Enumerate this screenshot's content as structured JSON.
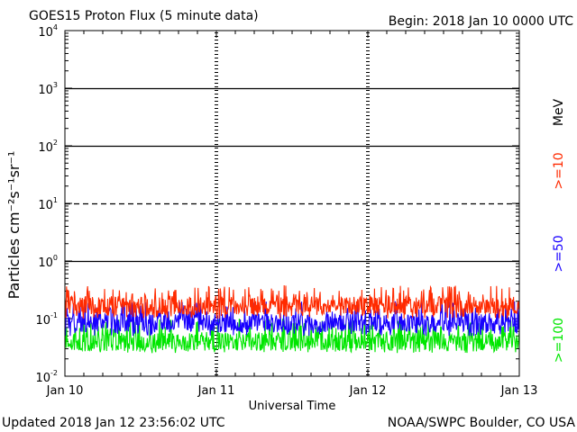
{
  "header": {
    "title": "GOES15 Proton Flux (5 minute data)",
    "begin": "Begin: 2018 Jan 10 0000 UTC"
  },
  "footer": {
    "updated": "Updated 2018 Jan 12 23:56:02 UTC",
    "credit": "NOAA/SWPC Boulder, CO USA"
  },
  "legend": {
    "unit": "MeV",
    "colors": {
      "ge10": "#ff2a00",
      "ge50": "#1800ff",
      "ge100": "#00e600"
    }
  },
  "chart_data": {
    "type": "line",
    "title": "GOES15 Proton Flux (5 minute data)",
    "xlabel": "Universal Time",
    "ylabel": "Particles cm⁻²s⁻¹sr⁻¹",
    "yscale": "log",
    "ylim": [
      0.01,
      10000
    ],
    "xlim": [
      0,
      3
    ],
    "x_ticks": [
      {
        "pos": 0,
        "label": "Jan 10"
      },
      {
        "pos": 1,
        "label": "Jan 11"
      },
      {
        "pos": 2,
        "label": "Jan 12"
      },
      {
        "pos": 3,
        "label": "Jan 13"
      }
    ],
    "y_ticks": [
      {
        "value": 0.01,
        "base": "10",
        "exp": "-2"
      },
      {
        "value": 0.1,
        "base": "10",
        "exp": "-1"
      },
      {
        "value": 1,
        "base": "10",
        "exp": "0"
      },
      {
        "value": 10,
        "base": "10",
        "exp": "1"
      },
      {
        "value": 100,
        "base": "10",
        "exp": "2"
      },
      {
        "value": 1000,
        "base": "10",
        "exp": "3"
      },
      {
        "value": 10000,
        "base": "10",
        "exp": "4"
      }
    ],
    "reference_lines": [
      {
        "value": 10,
        "style": "dashed"
      },
      {
        "value": 1,
        "style": "solid"
      },
      {
        "value": 100,
        "style": "solid"
      },
      {
        "value": 1000,
        "style": "solid"
      }
    ],
    "series": [
      {
        "name": ">=10",
        "color": "#ff2a00",
        "typical": 0.17,
        "min": 0.1,
        "max": 0.38
      },
      {
        "name": ">=50",
        "color": "#1800ff",
        "typical": 0.085,
        "min": 0.05,
        "max": 0.2
      },
      {
        "name": ">=100",
        "color": "#00e600",
        "typical": 0.04,
        "min": 0.025,
        "max": 0.1
      }
    ]
  }
}
